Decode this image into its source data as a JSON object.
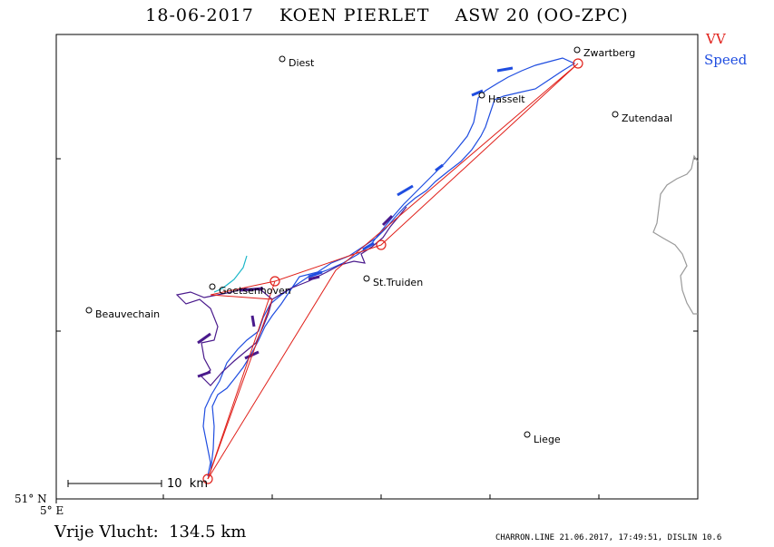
{
  "header": {
    "title": "18-06-2017    KOEN PIERLET    ASW 20 (OO-ZPC)"
  },
  "legend": {
    "vv": {
      "label": "VV",
      "color": "#e0201a"
    },
    "speed": {
      "label": "Speed",
      "color": "#1f4de0"
    }
  },
  "map": {
    "places": [
      {
        "name": "Diest"
      },
      {
        "name": "Zwartberg"
      },
      {
        "name": "Hasselt"
      },
      {
        "name": "Zutendaal"
      },
      {
        "name": "Goetsenhoven"
      },
      {
        "name": "St.Truiden"
      },
      {
        "name": "Beauvechain"
      },
      {
        "name": "Liege"
      }
    ],
    "scale_label": "10  km",
    "lat_label": "51° N",
    "lon_label": "5° E"
  },
  "footer": {
    "distance": "Vrije Vlucht:  134.5 km",
    "meta": "CHARRON.LINE 21.06.2017, 17:49:51, DISLIN 10.6"
  }
}
